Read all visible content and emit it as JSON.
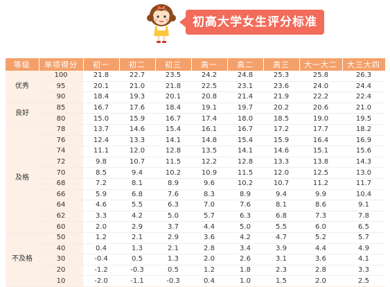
{
  "banner": {
    "title": "初高大学女生评分标准"
  },
  "table": {
    "headers": [
      "等级",
      "单项得分",
      "初一",
      "初二",
      "初三",
      "高一",
      "高二",
      "高三",
      "大一大二",
      "大三大四"
    ],
    "groups": [
      {
        "grade": "优秀",
        "rows": [
          [
            "100",
            "21.8",
            "22.7",
            "23.5",
            "24.2",
            "24.8",
            "25.3",
            "25.8",
            "26.3"
          ],
          [
            "95",
            "20.1",
            "21.0",
            "21.8",
            "22.5",
            "23.1",
            "23.6",
            "24.0",
            "24.4"
          ],
          [
            "90",
            "18.4",
            "19.3",
            "20.1",
            "20.8",
            "21.4",
            "21.9",
            "22.2",
            "22.4"
          ]
        ]
      },
      {
        "grade": "良好",
        "rows": [
          [
            "85",
            "16.7",
            "17.6",
            "18.4",
            "19.1",
            "19.7",
            "20.2",
            "20.6",
            "21.0"
          ],
          [
            "80",
            "15.0",
            "15.9",
            "16.7",
            "17.4",
            "18.0",
            "18.5",
            "19.0",
            "19.5"
          ]
        ]
      },
      {
        "grade": "及格",
        "rows": [
          [
            "78",
            "13.7",
            "14.6",
            "15.4",
            "16.1",
            "16.7",
            "17.2",
            "17.7",
            "18.2"
          ],
          [
            "76",
            "12.4",
            "13.3",
            "14.1",
            "14.8",
            "15.4",
            "15.9",
            "16.4",
            "16.9"
          ],
          [
            "74",
            "11.1",
            "12.0",
            "12.8",
            "13.5",
            "14.1",
            "14.6",
            "15.1",
            "15.6"
          ],
          [
            "72",
            "9.8",
            "10.7",
            "11.5",
            "12.2",
            "12.8",
            "13.3",
            "13.8",
            "14.3"
          ],
          [
            "70",
            "8.5",
            "9.4",
            "10.2",
            "10.9",
            "11.5",
            "12.0",
            "12.5",
            "13.0"
          ],
          [
            "68",
            "7.2",
            "8.1",
            "8.9",
            "9.6",
            "10.2",
            "10.7",
            "11.2",
            "11.7"
          ],
          [
            "66",
            "5.9",
            "6.8",
            "7.6",
            "8.3",
            "8.9",
            "9.4",
            "9.9",
            "10.4"
          ],
          [
            "64",
            "4.6",
            "5.5",
            "6.3",
            "7.0",
            "7.6",
            "8.1",
            "8.6",
            "9.1"
          ],
          [
            "62",
            "3.3",
            "4.2",
            "5.0",
            "5.7",
            "6.3",
            "6.8",
            "7.3",
            "7.8"
          ],
          [
            "60",
            "2.0",
            "2.9",
            "3.7",
            "4.4",
            "5.0",
            "5.5",
            "6.0",
            "6.5"
          ]
        ]
      },
      {
        "grade": "不及格",
        "rows": [
          [
            "50",
            "1.2",
            "2.1",
            "2.9",
            "3.6",
            "4.2",
            "4.7",
            "5.2",
            "5.7"
          ],
          [
            "40",
            "0.4",
            "1.3",
            "2.1",
            "2.8",
            "3.4",
            "3.9",
            "4.4",
            "4.9"
          ],
          [
            "30",
            "-0.4",
            "0.5",
            "1.3",
            "2.0",
            "2.6",
            "3.1",
            "3.6",
            "4.1"
          ],
          [
            "20",
            "-1.2",
            "-0.3",
            "0.5",
            "1.2",
            "1.8",
            "2.3",
            "2.8",
            "3.3"
          ],
          [
            "10",
            "-2.0",
            "-1.1",
            "-0.3",
            "0.4",
            "1.0",
            "1.5",
            "2.0",
            "2.5"
          ]
        ]
      }
    ]
  }
}
